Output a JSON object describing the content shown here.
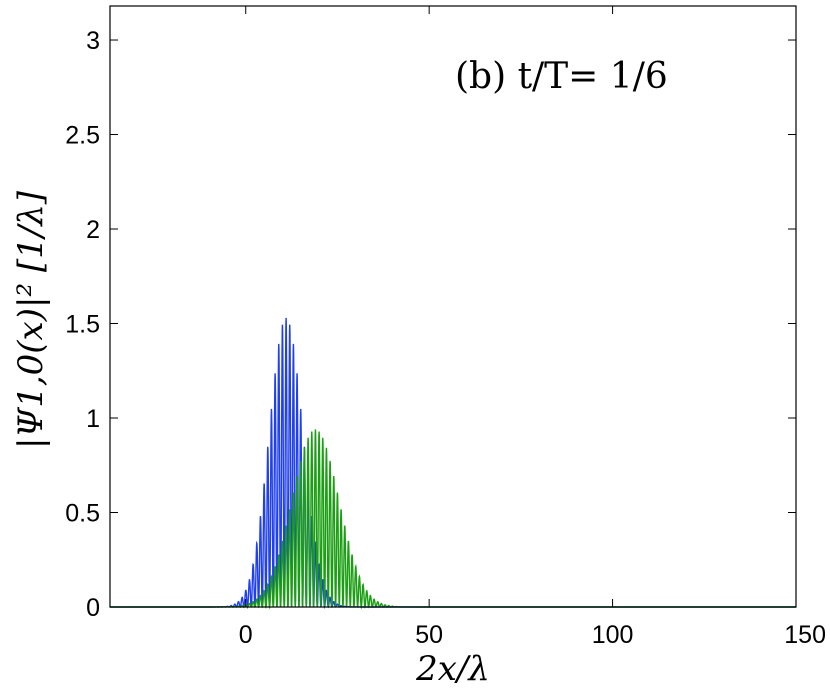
{
  "chart_data": {
    "type": "line",
    "annotation": "(b) t/T= 1/6",
    "xlabel": "2x/λ",
    "ylabel": "|Ψ1,0(x)|² [1/λ]",
    "xlim": [
      -37,
      150
    ],
    "ylim": [
      0,
      3.18
    ],
    "x_ticks": [
      0,
      50,
      100,
      150
    ],
    "y_ticks": [
      0,
      0.5,
      1,
      1.5,
      2,
      2.5,
      3
    ],
    "x_tick_labels": [
      "0",
      "50",
      "100",
      "150"
    ],
    "y_tick_labels": [
      "0",
      "0.5",
      "1",
      "1.5",
      "2",
      "2.5",
      "3"
    ],
    "grid": false,
    "series": [
      {
        "color": "#1f3ff0",
        "style": "oscillating",
        "envelope_peak_x": 11,
        "envelope_peak_y": 1.53,
        "envelope_width": 4.6,
        "oscillation_period": 1,
        "secondary_hump_x": 17,
        "secondary_hump_y": 0.28,
        "secondary_hump_width": 3,
        "x_range": [
          -37,
          150
        ]
      },
      {
        "color": "#1a9e12",
        "style": "oscillating",
        "envelope_peak_x": 19,
        "envelope_peak_y": 0.94,
        "envelope_width": 6.4,
        "oscillation_period": 1,
        "x_range": [
          -37,
          150
        ]
      }
    ]
  }
}
